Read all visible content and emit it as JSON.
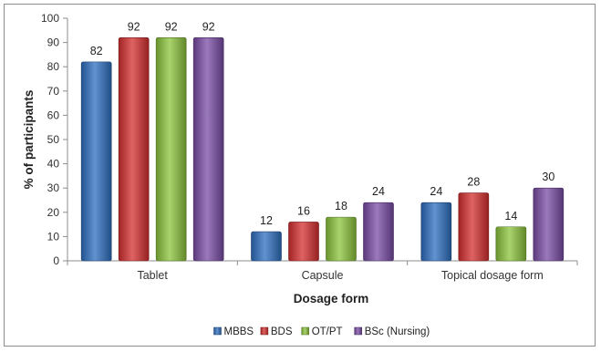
{
  "chart_data": {
    "type": "bar",
    "title": "",
    "xlabel": "Dosage form",
    "ylabel": "% of participants",
    "ylim": [
      0,
      100
    ],
    "yticks": [
      0,
      10,
      20,
      30,
      40,
      50,
      60,
      70,
      80,
      90,
      100
    ],
    "categories": [
      "Tablet",
      "Capsule",
      "Topical dosage form"
    ],
    "series": [
      {
        "name": "MBBS",
        "values": [
          82,
          12,
          24
        ],
        "color": "#2e6fc0"
      },
      {
        "name": "BDS",
        "values": [
          92,
          16,
          28
        ],
        "color": "#d62f2f"
      },
      {
        "name": "OT/PT",
        "values": [
          92,
          18,
          14
        ],
        "color": "#8cc43c"
      },
      {
        "name": "BSc (Nursing)",
        "values": [
          92,
          24,
          30
        ],
        "color": "#7a4ca6"
      }
    ],
    "grid": false,
    "legend_position": "bottom",
    "data_labels": true
  }
}
